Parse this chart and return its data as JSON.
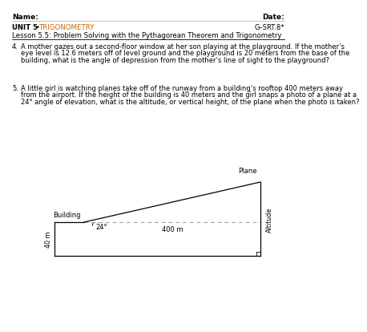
{
  "bg_color": "#ffffff",
  "text_color": "#000000",
  "orange_color": "#cc6600",
  "line_color": "#000000",
  "dashed_color": "#999999",
  "header_name": "Name:",
  "header_date": "Date:",
  "header_unit": "UNIT 5",
  "header_bullet": " • ",
  "header_trig": "TRIGONOMETRY",
  "header_code": "G–SRT.8*",
  "header_lesson": "Lesson 5.5: Problem Solving with the Pythagorean Theorem and Trigonometry",
  "q4_num": "4.",
  "q4_line1": "A mother gazes out a second-floor window at her son playing at the playground. If the mother’s",
  "q4_line2": "eye level is 12.6 meters off of level ground and the playground is 20 meters from the base of the",
  "q4_line3": "building, what is the angle of depression from the mother’s line of sight to the playground?",
  "q5_num": "5.",
  "q5_line1": "A little girl is watching planes take off of the runway from a building’s rooftop 400 meters away",
  "q5_line2": "from the airport. If the height of the building is 40 meters and the girl snaps a photo of a plane at a",
  "q5_line3": "24° angle of elevation, what is the altitude, or vertical height, of the plane when the photo is taken?",
  "label_plane": "Plane",
  "label_building": "Building",
  "label_angle": "24°",
  "label_40m": "40 m",
  "label_400m": "400 m",
  "label_altitude": "Altitude"
}
